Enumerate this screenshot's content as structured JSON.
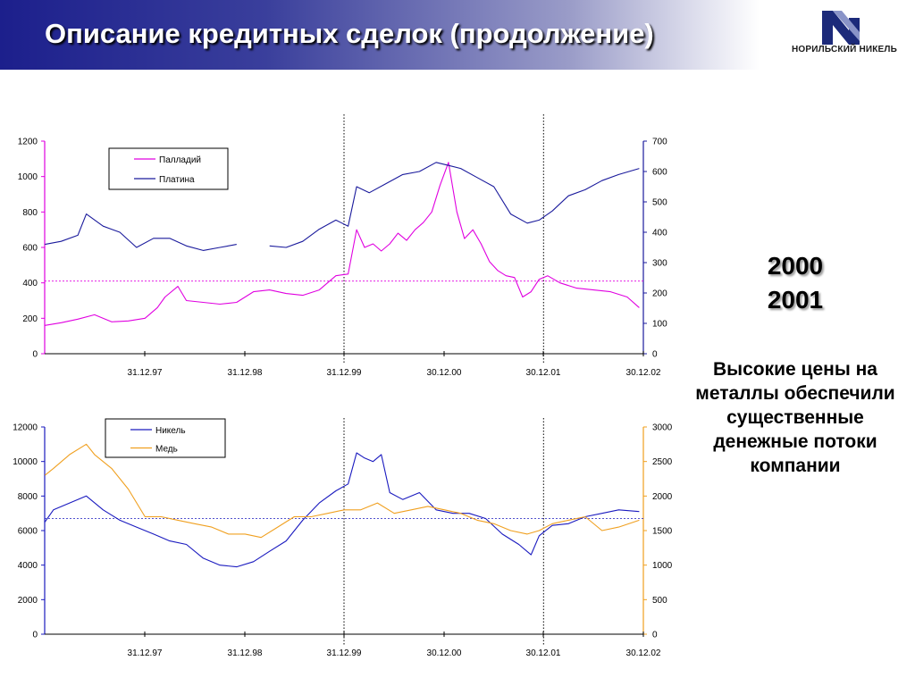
{
  "header": {
    "title": "Описание кредитных сделок (продолжение)",
    "logo_text": "НОРИЛЬСКИЙ НИКЕЛЬ",
    "logo_color": "#1c2a7a"
  },
  "side": {
    "year_1": "2000",
    "year_2": "2001",
    "note": "Высокие цены на металлы обеспечили существенные денежные потоки компании"
  },
  "chart_data": [
    {
      "type": "line",
      "x_ticks": [
        "31.12.97",
        "31.12.98",
        "31.12.99",
        "30.12.00",
        "30.12.01",
        "30.12.02"
      ],
      "x_range": [
        "1996-12-31",
        "2002-12-30"
      ],
      "y_left": {
        "ylim": [
          0,
          1200
        ],
        "ticks": [
          0,
          200,
          400,
          600,
          800,
          1000,
          1200
        ]
      },
      "y_right": {
        "ylim": [
          0,
          700
        ],
        "ticks": [
          0,
          100,
          200,
          300,
          400,
          500,
          600,
          700
        ]
      },
      "vertical_markers": [
        "1999-12-31",
        "2001-12-31"
      ],
      "reference_line": {
        "axis": "left",
        "value": 410
      },
      "legend_position": "top-left",
      "series": [
        {
          "name": "Палладий",
          "axis": "left",
          "color": "#e000e0",
          "x": [
            "1997-01-01",
            "1997-03-01",
            "1997-05-01",
            "1997-07-01",
            "1997-09-01",
            "1997-11-01",
            "1998-01-01",
            "1998-02-15",
            "1998-03-15",
            "1998-05-01",
            "1998-06-01",
            "1998-08-01",
            "1998-10-01",
            "1998-12-01",
            "1999-02-01",
            "1999-04-01",
            "1999-06-01",
            "1999-08-01",
            "1999-10-01",
            "1999-12-01",
            "2000-01-15",
            "2000-02-15",
            "2000-03-15",
            "2000-04-15",
            "2000-05-15",
            "2000-06-15",
            "2000-07-15",
            "2000-08-15",
            "2000-09-15",
            "2000-10-15",
            "2000-11-15",
            "2000-12-15",
            "2001-01-15",
            "2001-02-15",
            "2001-03-15",
            "2001-04-15",
            "2001-05-15",
            "2001-06-15",
            "2001-07-15",
            "2001-08-15",
            "2001-09-15",
            "2001-10-15",
            "2001-11-15",
            "2001-12-15",
            "2002-01-15",
            "2002-03-01",
            "2002-05-01",
            "2002-07-01",
            "2002-09-01",
            "2002-11-01",
            "2002-12-15"
          ],
          "values": [
            160,
            175,
            195,
            220,
            180,
            185,
            200,
            260,
            320,
            380,
            300,
            290,
            280,
            290,
            350,
            360,
            340,
            330,
            360,
            440,
            450,
            700,
            600,
            620,
            580,
            620,
            680,
            640,
            700,
            740,
            800,
            950,
            1080,
            800,
            650,
            700,
            620,
            520,
            470,
            440,
            430,
            320,
            350,
            420,
            440,
            400,
            370,
            360,
            350,
            320,
            260
          ]
        },
        {
          "name": "Платина",
          "axis": "right",
          "color": "#1a1a9c",
          "x": [
            "1997-01-01",
            "1997-03-01",
            "1997-05-01",
            "1997-06-01",
            "1997-08-01",
            "1997-10-01",
            "1997-12-01",
            "1998-02-01",
            "1998-04-01",
            "1998-06-01",
            "1998-08-01",
            "1998-10-01",
            "1998-12-01",
            "1999-02-01",
            "1999-04-01",
            "1999-06-01",
            "1999-08-01",
            "1999-10-01",
            "1999-12-01",
            "2000-01-15",
            "2000-02-15",
            "2000-04-01",
            "2000-06-01",
            "2000-08-01",
            "2000-10-01",
            "2000-12-01",
            "2001-01-15",
            "2001-03-01",
            "2001-05-01",
            "2001-07-01",
            "2001-09-01",
            "2001-11-01",
            "2001-12-15",
            "2002-02-01",
            "2002-04-01",
            "2002-06-01",
            "2002-08-01",
            "2002-10-01",
            "2002-12-15"
          ],
          "values": [
            360,
            370,
            390,
            460,
            420,
            400,
            350,
            380,
            380,
            355,
            340,
            350,
            360,
            null,
            355,
            350,
            370,
            410,
            440,
            420,
            550,
            530,
            560,
            590,
            600,
            630,
            620,
            610,
            580,
            550,
            460,
            430,
            440,
            470,
            520,
            540,
            570,
            590,
            610
          ]
        }
      ]
    },
    {
      "type": "line",
      "x_ticks": [
        "31.12.97",
        "31.12.98",
        "31.12.99",
        "30.12.00",
        "30.12.01",
        "30.12.02"
      ],
      "x_range": [
        "1996-12-31",
        "2002-12-30"
      ],
      "y_left": {
        "ylim": [
          0,
          12000
        ],
        "ticks": [
          0,
          2000,
          4000,
          6000,
          8000,
          10000,
          12000
        ]
      },
      "y_right": {
        "ylim": [
          0,
          3000
        ],
        "ticks": [
          0,
          500,
          1000,
          1500,
          2000,
          2500,
          3000
        ]
      },
      "vertical_markers": [
        "1999-12-31",
        "2001-12-31"
      ],
      "reference_line": {
        "axis": "left",
        "value": 6700
      },
      "legend_position": "top-left",
      "series": [
        {
          "name": "Никель",
          "axis": "left",
          "color": "#1a1abf",
          "x": [
            "1997-01-01",
            "1997-02-01",
            "1997-04-01",
            "1997-06-01",
            "1997-08-01",
            "1997-10-01",
            "1997-12-01",
            "1998-02-01",
            "1998-04-01",
            "1998-06-01",
            "1998-08-01",
            "1998-10-01",
            "1998-12-01",
            "1999-02-01",
            "1999-04-01",
            "1999-06-01",
            "1999-08-01",
            "1999-10-01",
            "1999-12-01",
            "2000-01-15",
            "2000-02-15",
            "2000-03-15",
            "2000-04-15",
            "2000-05-15",
            "2000-06-15",
            "2000-08-01",
            "2000-10-01",
            "2000-12-01",
            "2001-02-01",
            "2001-04-01",
            "2001-06-01",
            "2001-08-01",
            "2001-10-01",
            "2001-11-15",
            "2001-12-15",
            "2002-02-01",
            "2002-04-01",
            "2002-06-01",
            "2002-08-01",
            "2002-10-01",
            "2002-12-15"
          ],
          "values": [
            6500,
            7200,
            7600,
            8000,
            7200,
            6600,
            6200,
            5800,
            5400,
            5200,
            4400,
            4000,
            3900,
            4200,
            4800,
            5400,
            6600,
            7600,
            8300,
            8700,
            10500,
            10200,
            10000,
            10400,
            8200,
            7800,
            8200,
            7200,
            7000,
            7000,
            6700,
            5800,
            5200,
            4600,
            5700,
            6300,
            6400,
            6800,
            7000,
            7200,
            7100
          ]
        },
        {
          "name": "Медь",
          "axis": "right",
          "color": "#f0a020",
          "x": [
            "1997-01-01",
            "1997-02-01",
            "1997-04-01",
            "1997-06-01",
            "1997-07-01",
            "1997-09-01",
            "1997-11-01",
            "1998-01-01",
            "1998-03-01",
            "1998-05-01",
            "1998-07-01",
            "1998-09-01",
            "1998-11-01",
            "1999-01-01",
            "1999-03-01",
            "1999-05-01",
            "1999-07-01",
            "1999-09-01",
            "1999-11-01",
            "2000-01-01",
            "2000-03-01",
            "2000-05-01",
            "2000-07-01",
            "2000-09-01",
            "2000-11-01",
            "2001-01-01",
            "2001-03-01",
            "2001-05-01",
            "2001-07-01",
            "2001-09-01",
            "2001-11-01",
            "2001-12-15",
            "2002-02-01",
            "2002-04-01",
            "2002-06-01",
            "2002-08-01",
            "2002-10-01",
            "2002-12-15"
          ],
          "values": [
            2300,
            2400,
            2600,
            2750,
            2600,
            2400,
            2100,
            1700,
            1700,
            1650,
            1600,
            1550,
            1450,
            1450,
            1400,
            1550,
            1700,
            1700,
            1750,
            1800,
            1800,
            1900,
            1750,
            1800,
            1850,
            1800,
            1750,
            1650,
            1600,
            1500,
            1450,
            1500,
            1600,
            1650,
            1700,
            1500,
            1550,
            1650
          ]
        }
      ]
    }
  ]
}
